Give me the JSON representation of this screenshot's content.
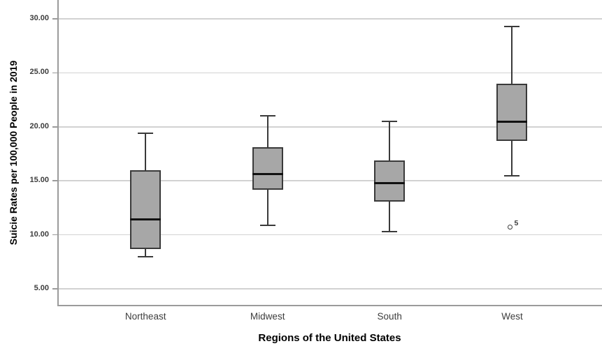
{
  "chart_data": {
    "type": "boxplot",
    "title": "",
    "xlabel": "Regions of the United States",
    "ylabel": "Suicie Rates per 100,000 People in 2019",
    "categories": [
      "Northeast",
      "Midwest",
      "South",
      "West"
    ],
    "y_ticks": [
      5,
      10,
      15,
      20,
      25,
      30
    ],
    "y_tick_labels": [
      "5.00",
      "10.00",
      "15.00",
      "20.00",
      "25.00",
      "30.00"
    ],
    "ylim": [
      3.45,
      31.75
    ],
    "grid": true,
    "legend": "none",
    "boxes": [
      {
        "category": "Northeast",
        "whisker_low": 8.0,
        "q1": 8.7,
        "median": 11.4,
        "q3": 16.0,
        "whisker_high": 19.4,
        "outliers": []
      },
      {
        "category": "Midwest",
        "whisker_low": 10.9,
        "q1": 14.2,
        "median": 15.6,
        "q3": 18.1,
        "whisker_high": 21.0,
        "outliers": []
      },
      {
        "category": "South",
        "whisker_low": 10.3,
        "q1": 13.1,
        "median": 14.8,
        "q3": 16.9,
        "whisker_high": 20.5,
        "outliers": []
      },
      {
        "category": "West",
        "whisker_low": 15.5,
        "q1": 18.7,
        "median": 20.5,
        "q3": 24.0,
        "whisker_high": 29.3,
        "outliers": [
          {
            "value": 10.7,
            "label": "5"
          }
        ]
      }
    ],
    "colors": {
      "box_fill": "#a7a7a7",
      "box_border": "#3a3a3a",
      "median": "#111111",
      "whisker": "#3a3a3a",
      "gridline": "#d2d2d2",
      "axis_line": "#9b9b9b",
      "tick_label": "#3d3d3d",
      "category_label": "#3d3d3d",
      "outlier": "#3d3d3d",
      "title_text": "#000000"
    }
  }
}
